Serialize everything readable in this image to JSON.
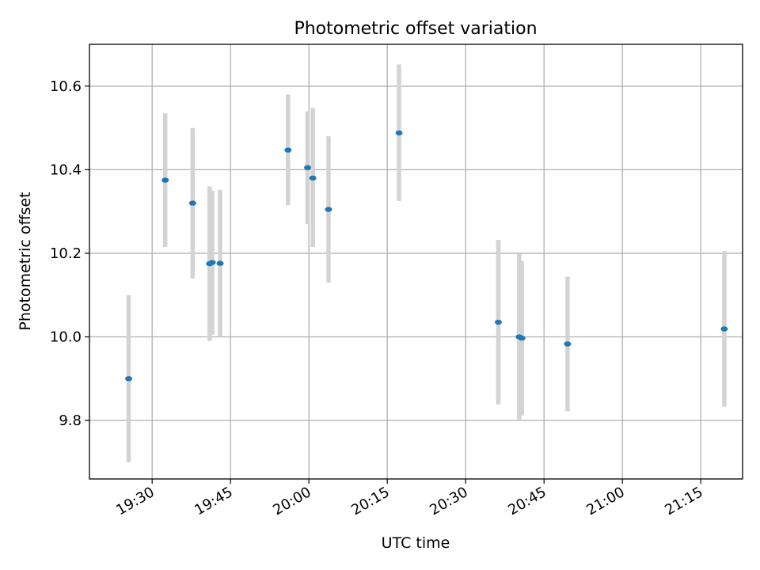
{
  "chart_data": {
    "type": "scatter",
    "title": "Photometric offset variation",
    "xlabel": "UTC time",
    "ylabel": "Photometric offset",
    "x_type": "time",
    "xlim": [
      "19:18",
      "21:23"
    ],
    "ylim": [
      9.66,
      10.7
    ],
    "x_ticks": [
      "19:30",
      "19:45",
      "20:00",
      "20:15",
      "20:30",
      "20:45",
      "21:00",
      "21:15"
    ],
    "y_ticks": [
      "9.8",
      "10.0",
      "10.2",
      "10.4",
      "10.6"
    ],
    "grid": true,
    "colors": {
      "point": "#1f77b4",
      "errorbar": "#d3d3d3",
      "grid": "#b0b0b0",
      "axes": "#000000"
    },
    "series": [
      {
        "points": [
          {
            "x": "19:25:30",
            "y": 9.9,
            "err_low": 9.7,
            "err_high": 10.1
          },
          {
            "x": "19:32:30",
            "y": 10.375,
            "err_low": 10.215,
            "err_high": 10.535
          },
          {
            "x": "19:37:45",
            "y": 10.32,
            "err_low": 10.14,
            "err_high": 10.5
          },
          {
            "x": "19:41:00",
            "y": 10.175,
            "err_low": 9.99,
            "err_high": 10.36
          },
          {
            "x": "19:41:30",
            "y": 10.178,
            "err_low": 10.005,
            "err_high": 10.35
          },
          {
            "x": "19:43:00",
            "y": 10.176,
            "err_low": 10.0,
            "err_high": 10.352
          },
          {
            "x": "19:56:00",
            "y": 10.447,
            "err_low": 10.315,
            "err_high": 10.58
          },
          {
            "x": "19:59:45",
            "y": 10.405,
            "err_low": 10.27,
            "err_high": 10.54
          },
          {
            "x": "20:00:45",
            "y": 10.38,
            "err_low": 10.215,
            "err_high": 10.548
          },
          {
            "x": "20:03:45",
            "y": 10.305,
            "err_low": 10.13,
            "err_high": 10.48
          },
          {
            "x": "20:17:15",
            "y": 10.488,
            "err_low": 10.325,
            "err_high": 10.652
          },
          {
            "x": "20:36:15",
            "y": 10.035,
            "err_low": 9.838,
            "err_high": 10.232
          },
          {
            "x": "20:40:15",
            "y": 10.0,
            "err_low": 9.8,
            "err_high": 10.198
          },
          {
            "x": "20:40:45",
            "y": 9.997,
            "err_low": 9.812,
            "err_high": 10.182
          },
          {
            "x": "20:49:30",
            "y": 9.983,
            "err_low": 9.822,
            "err_high": 10.144
          },
          {
            "x": "21:19:30",
            "y": 10.019,
            "err_low": 9.833,
            "err_high": 10.205
          }
        ]
      }
    ]
  }
}
